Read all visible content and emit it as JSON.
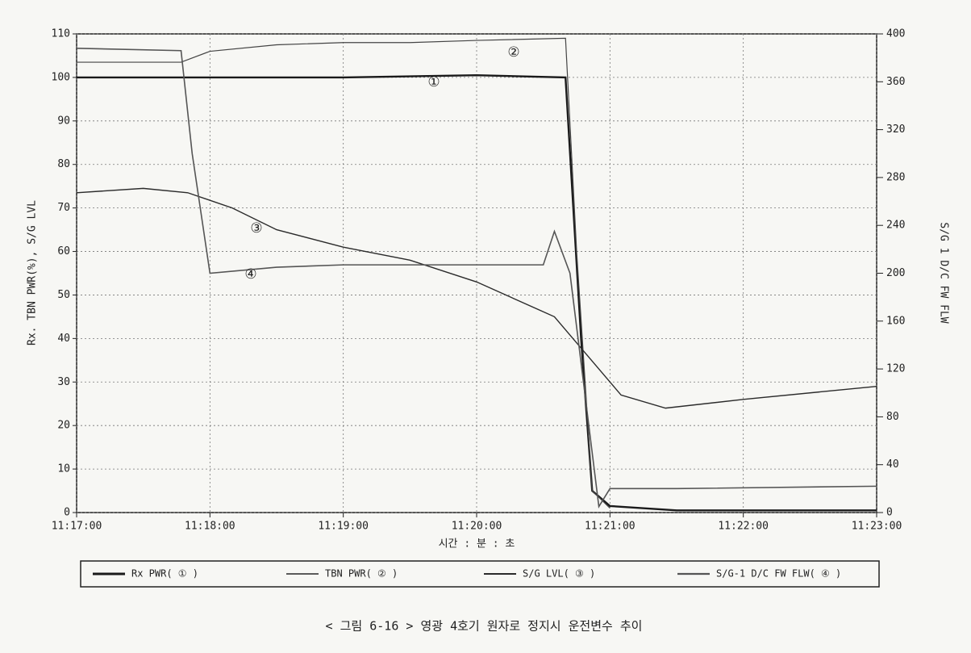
{
  "chart_data": {
    "type": "line",
    "ylabel": "Rx. TBN PWR(%), S/G LVL",
    "y2label": "S/G 1 D/C FW FLW",
    "xlabel": "시간 : 분 : 초",
    "caption": "< 그림 6-16 >  영광 4호기 원자로 정지시 운전변수 추이",
    "xlim": [
      "11:17:00",
      "11:23:00"
    ],
    "xticks": [
      "11:17:00",
      "11:18:00",
      "11:19:00",
      "11:20:00",
      "11:21:00",
      "11:22:00",
      "11:23:00"
    ],
    "ylim": [
      0,
      110
    ],
    "yticks": [
      0,
      10,
      20,
      30,
      40,
      50,
      60,
      70,
      80,
      90,
      100,
      110
    ],
    "y2lim": [
      0,
      400
    ],
    "y2ticks": [
      0,
      40,
      80,
      120,
      160,
      200,
      240,
      280,
      320,
      360,
      400
    ],
    "grid": true,
    "annotations": [
      "①",
      "②",
      "③",
      "④"
    ],
    "series": [
      {
        "name": "Rx PWR( ① )",
        "color": "#1a1a1a",
        "x": [
          "11:17:00",
          "11:18:00",
          "11:19:00",
          "11:20:00",
          "11:20:40",
          "11:20:47",
          "11:20:52",
          "11:21:00",
          "11:21:30",
          "11:23:00"
        ],
        "values": [
          100,
          100,
          100,
          100.5,
          100,
          40,
          5,
          1.5,
          0.5,
          0.5
        ]
      },
      {
        "name": "TBN PWR( ② )",
        "color": "#444444",
        "x": [
          "11:17:00",
          "11:17:47",
          "11:18:00",
          "11:18:30",
          "11:19:00",
          "11:19:30",
          "11:20:00",
          "11:20:40",
          "11:20:45",
          "11:20:52",
          "11:21:00"
        ],
        "values": [
          103.5,
          103.5,
          106,
          107.5,
          108,
          108,
          108.5,
          109,
          60,
          5,
          1
        ]
      },
      {
        "name": "S/G LVL( ③ )",
        "color": "#2b2b2b",
        "x": [
          "11:17:00",
          "11:17:30",
          "11:17:50",
          "11:18:10",
          "11:18:30",
          "11:19:00",
          "11:19:30",
          "11:20:00",
          "11:20:35",
          "11:20:50",
          "11:21:05",
          "11:21:25",
          "11:22:00",
          "11:23:00"
        ],
        "values": [
          73.5,
          74.5,
          73.5,
          70,
          65,
          61,
          58,
          53,
          45,
          36,
          27,
          24,
          26,
          29
        ]
      },
      {
        "name": "S/G-1 D/C FW FLW( ④ )",
        "color": "#555555",
        "axis": "y2",
        "x": [
          "11:17:00",
          "11:17:47",
          "11:17:52",
          "11:18:00",
          "11:18:30",
          "11:19:00",
          "11:20:00",
          "11:20:30",
          "11:20:35",
          "11:20:42",
          "11:20:55",
          "11:21:00",
          "11:21:30",
          "11:23:00"
        ],
        "values": [
          388,
          386,
          300,
          200,
          205,
          207,
          207,
          207,
          235,
          200,
          5,
          20,
          20,
          22
        ]
      }
    ]
  }
}
